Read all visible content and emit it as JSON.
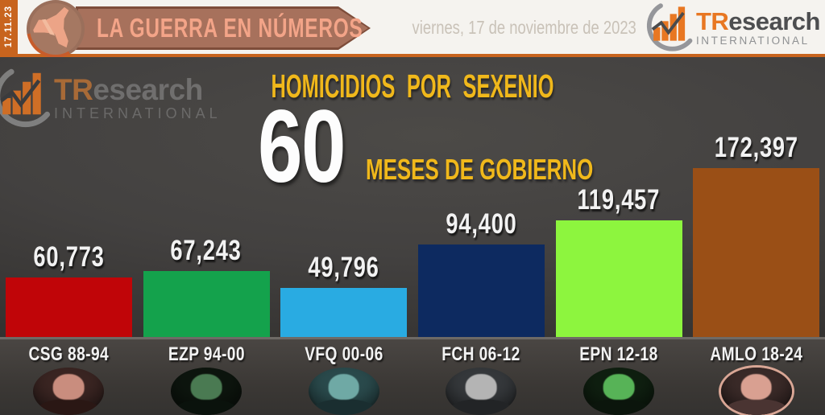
{
  "header": {
    "side_date": "17.11.23",
    "banner_title": "LA GUERRA EN NÚMEROS",
    "date_line": "viernes, 17 de noviembre de 2023"
  },
  "brand": {
    "prefix": "TR",
    "suffix": "esearch",
    "subtitle": "INTERNATIONAL",
    "orange": "#E87722",
    "dark_gray": "#4D4E50",
    "swoosh_gray": "#9B9B9D"
  },
  "title": {
    "line1": "HOMICIDIOS POR SEXENIO",
    "big_number": "60",
    "line2": "MESES DE GOBIERNO",
    "accent_yellow": "#F0B81B"
  },
  "chart_data": {
    "type": "bar",
    "title": "HOMICIDIOS POR SEXENIO",
    "subtitle": "60 MESES DE GOBIERNO",
    "categories": [
      "CSG 88-94",
      "EZP 94-00",
      "VFQ 00-06",
      "FCH 06-12",
      "EPN 12-18",
      "AMLO 18-24"
    ],
    "values": [
      60773,
      67243,
      49796,
      94400,
      119457,
      172397
    ],
    "value_labels": [
      "60,773",
      "67,243",
      "49,796",
      "94,400",
      "119,457",
      "172,397"
    ],
    "colors": [
      "#C00508",
      "#14A24C",
      "#29ABE2",
      "#0D2A60",
      "#8DF53E",
      "#9A4F16"
    ],
    "ylim": [
      0,
      180000
    ],
    "grid": false,
    "legend_position": "none",
    "bars": [
      {
        "label": "CSG 88-94",
        "value": 60773,
        "value_label": "60,773",
        "color": "#C00508",
        "photo": {
          "bg": "#3A2522",
          "skin": "#C98D7E",
          "suit": "#2A1714"
        }
      },
      {
        "label": "EZP 94-00",
        "value": 67243,
        "value_label": "67,243",
        "color": "#14A24C",
        "photo": {
          "bg": "#0D150E",
          "skin": "#4A7A52",
          "suit": "#0A120C"
        }
      },
      {
        "label": "VFQ 00-06",
        "value": 49796,
        "value_label": "49,796",
        "color": "#29ABE2",
        "photo": {
          "bg": "#2A4A4C",
          "skin": "#6FA9A5",
          "suit": "#1A2E30"
        }
      },
      {
        "label": "FCH 06-12",
        "value": 94400,
        "value_label": "94,400",
        "color": "#0D2A60",
        "photo": {
          "bg": "#35383B",
          "skin": "#B4B4B4",
          "suit": "#222426"
        }
      },
      {
        "label": "EPN 12-18",
        "value": 119457,
        "value_label": "119,457",
        "color": "#8DF53E",
        "photo": {
          "bg": "#0F1F10",
          "skin": "#57B357",
          "suit": "#0B150C"
        }
      },
      {
        "label": "AMLO 18-24",
        "value": 172397,
        "value_label": "172,397",
        "color": "#9A4F16",
        "photo": {
          "bg": "#3A2A28",
          "skin": "#D9A091",
          "suit": "#4A3432",
          "ring": "#D9A695"
        }
      }
    ]
  }
}
